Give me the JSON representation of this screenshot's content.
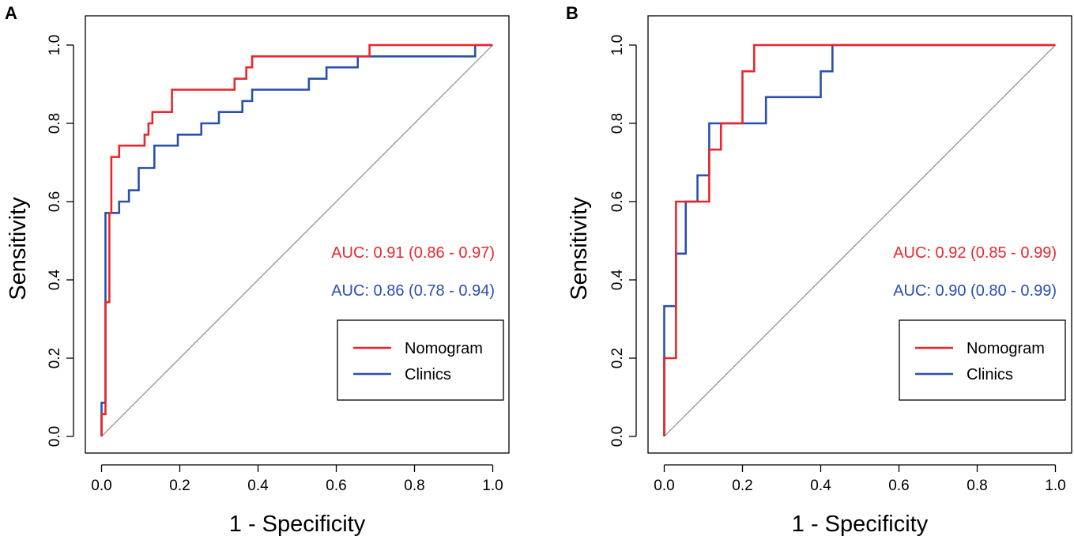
{
  "figure": {
    "panel_labels": [
      "A",
      "B"
    ]
  },
  "colors": {
    "nomogram": "#e8272c",
    "clinics": "#2a4fb0",
    "diagonal": "#8c8c8c",
    "axis": "#000000"
  },
  "chart_data": [
    {
      "type": "line",
      "panel": "A",
      "xlabel": "1 - Specificity",
      "ylabel": "Sensitivity",
      "xlim": [
        0,
        1
      ],
      "ylim": [
        0,
        1
      ],
      "xticks": [
        "0.0",
        "0.2",
        "0.4",
        "0.6",
        "0.8",
        "1.0"
      ],
      "yticks": [
        "0.0",
        "0.2",
        "0.4",
        "0.6",
        "0.8",
        "1.0"
      ],
      "reference_line": [
        [
          0,
          0
        ],
        [
          1,
          1
        ]
      ],
      "legend": {
        "position": "bottom-right",
        "entries": [
          "Nomogram",
          "Clinics"
        ]
      },
      "annotations": [
        "AUC: 0.91 (0.86 - 0.97)",
        "AUC: 0.86 (0.78 - 0.94)"
      ],
      "series": [
        {
          "name": "Nomogram",
          "x": [
            0.0,
            0.0,
            0.0,
            0.01,
            0.01,
            0.01,
            0.02,
            0.02,
            0.025,
            0.025,
            0.045,
            0.045,
            0.11,
            0.11,
            0.12,
            0.12,
            0.13,
            0.13,
            0.18,
            0.18,
            0.34,
            0.34,
            0.37,
            0.37,
            0.385,
            0.385,
            0.685,
            0.685,
            1.0
          ],
          "y": [
            0.0,
            0.0,
            0.057,
            0.057,
            0.086,
            0.343,
            0.343,
            0.571,
            0.571,
            0.714,
            0.714,
            0.743,
            0.743,
            0.771,
            0.771,
            0.8,
            0.8,
            0.829,
            0.829,
            0.886,
            0.886,
            0.914,
            0.914,
            0.943,
            0.943,
            0.971,
            0.971,
            1.0,
            1.0
          ]
        },
        {
          "name": "Clinics",
          "x": [
            0.0,
            0.0,
            0.01,
            0.01,
            0.045,
            0.045,
            0.07,
            0.07,
            0.095,
            0.095,
            0.135,
            0.135,
            0.195,
            0.195,
            0.255,
            0.255,
            0.3,
            0.3,
            0.36,
            0.36,
            0.385,
            0.385,
            0.53,
            0.53,
            0.575,
            0.575,
            0.655,
            0.655,
            0.955,
            0.955,
            1.0
          ],
          "y": [
            0.0,
            0.086,
            0.086,
            0.571,
            0.571,
            0.6,
            0.6,
            0.629,
            0.629,
            0.686,
            0.686,
            0.743,
            0.743,
            0.771,
            0.771,
            0.8,
            0.8,
            0.829,
            0.829,
            0.857,
            0.857,
            0.886,
            0.886,
            0.914,
            0.914,
            0.943,
            0.943,
            0.971,
            0.971,
            1.0,
            1.0
          ]
        }
      ]
    },
    {
      "type": "line",
      "panel": "B",
      "xlabel": "1 - Specificity",
      "ylabel": "Sensitivity",
      "xlim": [
        0,
        1
      ],
      "ylim": [
        0,
        1
      ],
      "xticks": [
        "0.0",
        "0.2",
        "0.4",
        "0.6",
        "0.8",
        "1.0"
      ],
      "yticks": [
        "0.0",
        "0.2",
        "0.4",
        "0.6",
        "0.8",
        "1.0"
      ],
      "reference_line": [
        [
          0,
          0
        ],
        [
          1,
          1
        ]
      ],
      "legend": {
        "position": "bottom-right",
        "entries": [
          "Nomogram",
          "Clinics"
        ]
      },
      "annotations": [
        "AUC: 0.92 (0.85 - 0.99)",
        "AUC: 0.90 (0.80 - 0.99)"
      ],
      "series": [
        {
          "name": "Nomogram",
          "x": [
            0.0,
            0.0,
            0.03,
            0.03,
            0.115,
            0.115,
            0.145,
            0.145,
            0.2,
            0.2,
            0.23,
            0.23,
            1.0
          ],
          "y": [
            0.0,
            0.2,
            0.2,
            0.6,
            0.6,
            0.733,
            0.733,
            0.8,
            0.8,
            0.933,
            0.933,
            1.0,
            1.0
          ]
        },
        {
          "name": "Clinics",
          "x": [
            0.0,
            0.0,
            0.03,
            0.03,
            0.055,
            0.055,
            0.085,
            0.085,
            0.115,
            0.115,
            0.26,
            0.26,
            0.4,
            0.4,
            0.43,
            0.43,
            1.0
          ],
          "y": [
            0.0,
            0.333,
            0.333,
            0.467,
            0.467,
            0.6,
            0.6,
            0.667,
            0.667,
            0.8,
            0.8,
            0.867,
            0.867,
            0.933,
            0.933,
            1.0,
            1.0
          ]
        }
      ]
    }
  ]
}
